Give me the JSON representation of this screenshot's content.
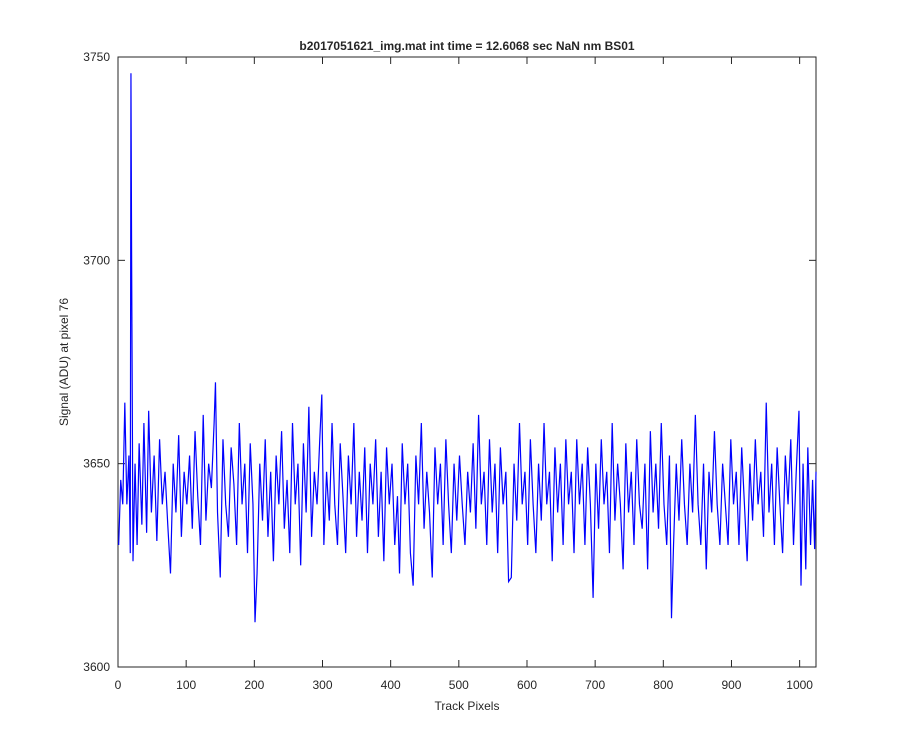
{
  "chart_data": {
    "type": "line",
    "title": "b2017051621_img.mat int time = 12.6068 sec  NaN nm BS01",
    "xlabel": "Track Pixels",
    "ylabel": "Signal (ADU) at pixel 76",
    "xlim": [
      0,
      1024
    ],
    "ylim": [
      3600,
      3750
    ],
    "xticks": [
      0,
      100,
      200,
      300,
      400,
      500,
      600,
      700,
      800,
      900,
      1000
    ],
    "yticks": [
      3600,
      3650,
      3700,
      3750
    ],
    "grid": false,
    "series": [
      {
        "color": "#0000ff",
        "x": [
          1,
          4,
          7,
          10,
          13,
          16,
          18,
          19,
          20,
          22,
          25,
          28,
          31,
          35,
          38,
          42,
          45,
          49,
          53,
          57,
          61,
          65,
          69,
          73,
          77,
          81,
          85,
          89,
          93,
          97,
          101,
          105,
          109,
          113,
          117,
          121,
          125,
          129,
          133,
          137,
          141,
          143,
          146,
          150,
          154,
          158,
          162,
          166,
          170,
          174,
          178,
          182,
          186,
          190,
          194,
          198,
          201,
          204,
          208,
          212,
          216,
          220,
          224,
          228,
          232,
          236,
          240,
          244,
          248,
          252,
          256,
          260,
          264,
          268,
          272,
          276,
          280,
          284,
          288,
          292,
          296,
          299,
          302,
          306,
          310,
          314,
          318,
          322,
          326,
          330,
          334,
          338,
          342,
          346,
          350,
          354,
          358,
          362,
          366,
          370,
          374,
          378,
          382,
          386,
          390,
          394,
          398,
          402,
          406,
          410,
          413,
          417,
          421,
          425,
          429,
          433,
          437,
          441,
          445,
          449,
          453,
          457,
          461,
          465,
          469,
          473,
          477,
          481,
          485,
          489,
          493,
          497,
          501,
          505,
          509,
          513,
          517,
          521,
          525,
          529,
          533,
          537,
          541,
          545,
          549,
          553,
          557,
          561,
          565,
          569,
          573,
          577,
          581,
          585,
          589,
          593,
          597,
          601,
          605,
          609,
          613,
          617,
          621,
          625,
          629,
          633,
          637,
          641,
          645,
          649,
          653,
          657,
          661,
          665,
          669,
          673,
          677,
          681,
          685,
          689,
          693,
          697,
          701,
          705,
          709,
          713,
          717,
          721,
          725,
          729,
          733,
          737,
          741,
          745,
          749,
          753,
          757,
          761,
          765,
          769,
          773,
          777,
          781,
          785,
          789,
          793,
          797,
          801,
          805,
          809,
          812,
          815,
          819,
          823,
          827,
          831,
          835,
          839,
          843,
          847,
          851,
          855,
          859,
          863,
          867,
          871,
          875,
          879,
          883,
          887,
          891,
          895,
          899,
          903,
          907,
          911,
          915,
          919,
          923,
          927,
          931,
          935,
          939,
          943,
          947,
          951,
          955,
          959,
          963,
          967,
          971,
          975,
          979,
          983,
          987,
          991,
          995,
          999,
          1002,
          1005,
          1009,
          1012,
          1016,
          1019,
          1022,
          1024
        ],
        "values": [
          3630,
          3646,
          3640,
          3665,
          3640,
          3652,
          3628,
          3746,
          3700,
          3626,
          3650,
          3630,
          3655,
          3635,
          3660,
          3633,
          3663,
          3638,
          3652,
          3631,
          3656,
          3640,
          3648,
          3635,
          3623,
          3650,
          3638,
          3657,
          3632,
          3648,
          3640,
          3652,
          3634,
          3658,
          3642,
          3630,
          3662,
          3636,
          3650,
          3644,
          3660,
          3670,
          3638,
          3622,
          3656,
          3640,
          3632,
          3654,
          3645,
          3630,
          3660,
          3640,
          3650,
          3628,
          3655,
          3640,
          3611,
          3623,
          3650,
          3636,
          3656,
          3632,
          3648,
          3626,
          3652,
          3640,
          3658,
          3634,
          3646,
          3628,
          3660,
          3640,
          3650,
          3625,
          3655,
          3638,
          3664,
          3632,
          3648,
          3640,
          3656,
          3667,
          3630,
          3648,
          3636,
          3660,
          3640,
          3630,
          3655,
          3642,
          3628,
          3652,
          3640,
          3660,
          3632,
          3648,
          3636,
          3654,
          3628,
          3650,
          3640,
          3656,
          3632,
          3648,
          3626,
          3654,
          3640,
          3650,
          3630,
          3642,
          3623,
          3655,
          3640,
          3650,
          3628,
          3620,
          3652,
          3640,
          3660,
          3634,
          3648,
          3638,
          3622,
          3654,
          3640,
          3650,
          3630,
          3656,
          3640,
          3628,
          3650,
          3636,
          3652,
          3640,
          3630,
          3648,
          3638,
          3655,
          3634,
          3662,
          3640,
          3648,
          3630,
          3656,
          3638,
          3650,
          3628,
          3654,
          3640,
          3648,
          3621,
          3622,
          3650,
          3636,
          3660,
          3640,
          3648,
          3630,
          3656,
          3640,
          3628,
          3650,
          3636,
          3660,
          3640,
          3648,
          3626,
          3654,
          3638,
          3650,
          3630,
          3656,
          3640,
          3648,
          3628,
          3656,
          3640,
          3650,
          3630,
          3654,
          3640,
          3617,
          3650,
          3634,
          3656,
          3640,
          3648,
          3628,
          3660,
          3636,
          3650,
          3640,
          3624,
          3655,
          3638,
          3648,
          3630,
          3656,
          3640,
          3634,
          3650,
          3624,
          3658,
          3638,
          3650,
          3634,
          3660,
          3640,
          3630,
          3652,
          3612,
          3630,
          3650,
          3636,
          3656,
          3640,
          3630,
          3650,
          3638,
          3662,
          3640,
          3630,
          3650,
          3624,
          3648,
          3638,
          3658,
          3640,
          3630,
          3650,
          3640,
          3630,
          3656,
          3640,
          3648,
          3630,
          3654,
          3640,
          3626,
          3650,
          3636,
          3656,
          3640,
          3648,
          3632,
          3665,
          3638,
          3650,
          3630,
          3654,
          3640,
          3628,
          3652,
          3640,
          3656,
          3630,
          3648,
          3663,
          3620,
          3650,
          3624,
          3654,
          3630,
          3646,
          3629,
          3648
        ]
      }
    ]
  }
}
